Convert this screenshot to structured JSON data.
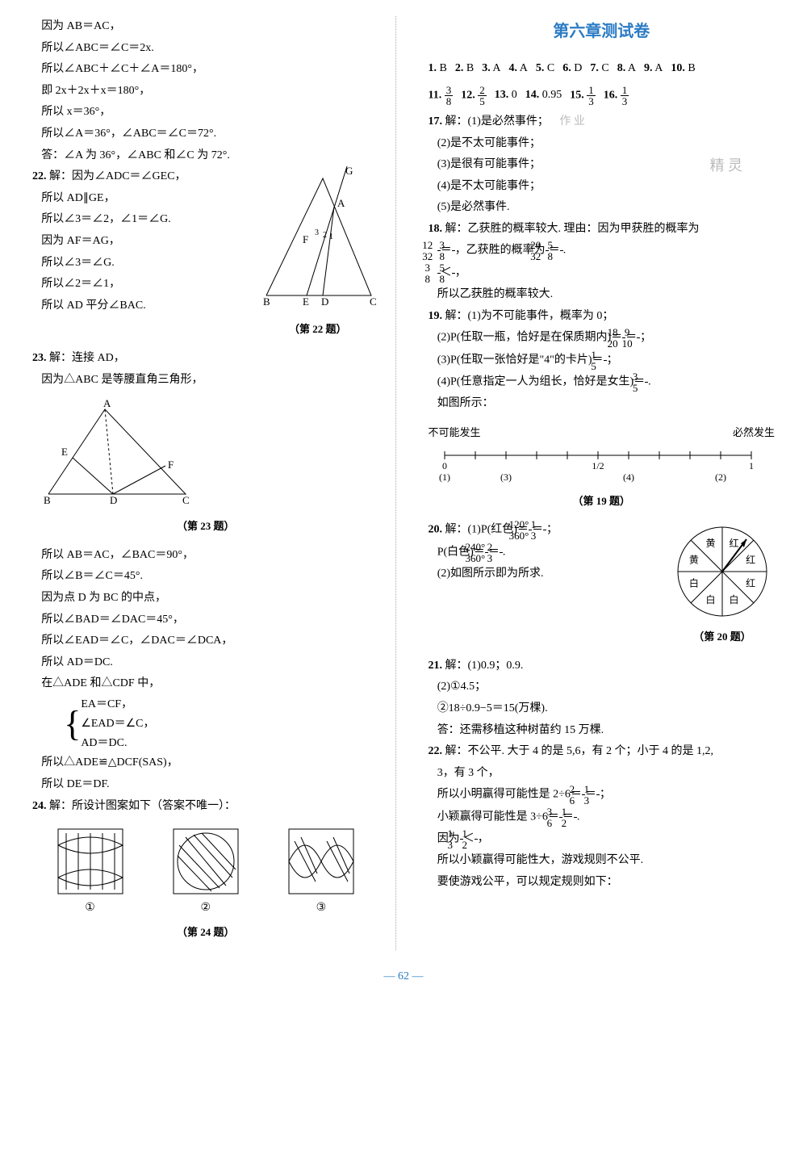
{
  "left": {
    "pre": [
      "因为 AB＝AC，",
      "所以∠ABC＝∠C＝2x.",
      "所以∠ABC＋∠C＋∠A＝180°，",
      "即 2x＋2x＋x＝180°，",
      "所以 x＝36°，",
      "所以∠A＝36°，∠ABC＝∠C＝72°.",
      "答：∠A 为 36°，∠ABC 和∠C 为 72°."
    ],
    "q22": {
      "num": "22.",
      "head": "解：因为∠ADC＝∠GEC，",
      "lines": [
        "所以 AD∥GE，",
        "所以∠3＝∠2，∠1＝∠G.",
        "因为 AF＝AG，",
        "所以∠3＝∠G.",
        "所以∠2＝∠1，",
        "所以 AD 平分∠BAC."
      ],
      "figLabel": "（第 22 题）",
      "fig": {
        "pts": {
          "B": "B",
          "E": "E",
          "D": "D",
          "C": "C",
          "F": "F",
          "A": "A",
          "G": "G"
        },
        "angles": [
          "3",
          "2",
          "1"
        ]
      }
    },
    "q23": {
      "num": "23.",
      "head": "解：连接 AD，",
      "lead": "因为△ABC 是等腰直角三角形，",
      "figLabel": "（第 23 题）",
      "fig": {
        "pts": {
          "A": "A",
          "E": "E",
          "F": "F",
          "B": "B",
          "D": "D",
          "C": "C"
        }
      },
      "lines": [
        "所以 AB＝AC，∠BAC＝90°，",
        "所以∠B＝∠C＝45°.",
        "因为点 D 为 BC 的中点，",
        "所以∠BAD＝∠DAC＝45°，",
        "所以∠EAD＝∠C，∠DAC＝∠DCA，",
        "所以 AD＝DC.",
        "在△ADE 和△CDF 中，"
      ],
      "brace": [
        "EA＝CF，",
        "∠EAD＝∠C，",
        "AD＝DC."
      ],
      "tail": [
        "所以△ADE≌△DCF(SAS)，",
        "所以 DE＝DF."
      ]
    },
    "q24": {
      "num": "24.",
      "head": "解：所设计图案如下（答案不唯一）：",
      "figLabel": "（第 24 题）",
      "labels": [
        "①",
        "②",
        "③"
      ],
      "stroke": "#000"
    }
  },
  "right": {
    "title": "第六章测试卷",
    "mc": [
      {
        "n": "1.",
        "a": "B"
      },
      {
        "n": "2.",
        "a": "B"
      },
      {
        "n": "3.",
        "a": "A"
      },
      {
        "n": "4.",
        "a": "A"
      },
      {
        "n": "5.",
        "a": "C"
      },
      {
        "n": "6.",
        "a": "D"
      },
      {
        "n": "7.",
        "a": "C"
      },
      {
        "n": "8.",
        "a": "A"
      },
      {
        "n": "9.",
        "a": "A"
      },
      {
        "n": "10.",
        "a": "B"
      }
    ],
    "fill": [
      {
        "n": "11.",
        "frac": [
          3,
          8
        ]
      },
      {
        "n": "12.",
        "frac": [
          2,
          5
        ]
      },
      {
        "n": "13.",
        "v": "0"
      },
      {
        "n": "14.",
        "v": "0.95"
      },
      {
        "n": "15.",
        "frac": [
          1,
          3
        ]
      },
      {
        "n": "16.",
        "frac": [
          1,
          3
        ]
      }
    ],
    "q17": {
      "num": "17.",
      "head": "解：(1)是必然事件；",
      "wm": [
        "作 业",
        "精 灵"
      ],
      "lines": [
        "(2)是不太可能事件；",
        "(3)是很有可能事件；",
        "(4)是不太可能事件；",
        "(5)是必然事件."
      ]
    },
    "q18": {
      "num": "18.",
      "head": "解：乙获胜的概率较大. 理由：因为甲获胜的概率为",
      "expr1": {
        "a": [
          12,
          32
        ],
        "b": [
          3,
          8
        ],
        "mid": "，乙获胜的概率为",
        "c": [
          20,
          32
        ],
        "d": [
          5,
          8
        ]
      },
      "cmp": {
        "a": [
          3,
          8
        ],
        "b": [
          5,
          8
        ],
        "op": "＜"
      },
      "tail": "所以乙获胜的概率较大."
    },
    "q19": {
      "num": "19.",
      "head": "解：(1)为不可能事件，概率为 0；",
      "p2": {
        "pre": "(2)P(任取一瓶，恰好是在保质期内)＝",
        "a": [
          18,
          20
        ],
        "b": [
          9,
          10
        ]
      },
      "p3": {
        "pre": "(3)P(任取一张恰好是\"4\"的卡片)＝",
        "a": [
          1,
          5
        ]
      },
      "p4": {
        "pre": "(4)P(任意指定一人为组长，恰好是女生)＝",
        "a": [
          3,
          5
        ]
      },
      "note": "如图所示：",
      "figLabel": "（第 19 题）",
      "scale": {
        "leftLabel": "不可能发生",
        "rightLabel": "必然发生",
        "ticks": [
          "0",
          "",
          "",
          "",
          "",
          "1/2",
          "",
          "",
          "",
          "",
          "1"
        ],
        "marks": [
          {
            "t": "(1)",
            "x": 0
          },
          {
            "t": "(3)",
            "x": 2
          },
          {
            "t": "(4)",
            "x": 6
          },
          {
            "t": "(2)",
            "x": 9
          }
        ]
      }
    },
    "q20": {
      "num": "20.",
      "p1": {
        "pre": "解：(1)P(红色)＝",
        "a": [
          "120°",
          "360°"
        ],
        "b": [
          1,
          3
        ]
      },
      "p2": {
        "pre": "P(白色)＝",
        "a": [
          "240°",
          "360°"
        ],
        "b": [
          2,
          3
        ]
      },
      "p3": "(2)如图所示即为所求.",
      "figLabel": "（第 20 题）",
      "wheel": {
        "labels": [
          "红",
          "红",
          "红",
          "白",
          "白",
          "白",
          "黄",
          "黄"
        ],
        "colors": [
          "#fff",
          "#fff",
          "#fff",
          "#fff",
          "#fff",
          "#fff",
          "#fff",
          "#fff"
        ],
        "border": "#000"
      }
    },
    "q21": {
      "num": "21.",
      "head": "解：(1)0.9；0.9.",
      "lines": [
        "(2)①4.5；",
        "②18÷0.9−5＝15(万棵).",
        "答：还需移植这种树苗约 15 万棵."
      ]
    },
    "q22": {
      "num": "22.",
      "head": "解：不公平. 大于 4 的是 5,6，有 2 个；小于 4 的是 1,2,",
      "l2": "3，有 3 个，",
      "p1": {
        "pre": "所以小明赢得可能性是 2÷6＝",
        "a": [
          2,
          6
        ],
        "b": [
          1,
          3
        ]
      },
      "p2": {
        "pre": "小颖赢得可能性是 3÷6＝",
        "a": [
          3,
          6
        ],
        "b": [
          1,
          2
        ]
      },
      "cmp": {
        "pre": "因为",
        "a": [
          1,
          3
        ],
        "b": [
          1,
          2
        ],
        "op": "＜",
        "post": "，"
      },
      "tail": [
        "所以小颖赢得可能性大，游戏规则不公平.",
        "要使游戏公平，可以规定规则如下："
      ]
    }
  },
  "pagenum": "— 62 —"
}
